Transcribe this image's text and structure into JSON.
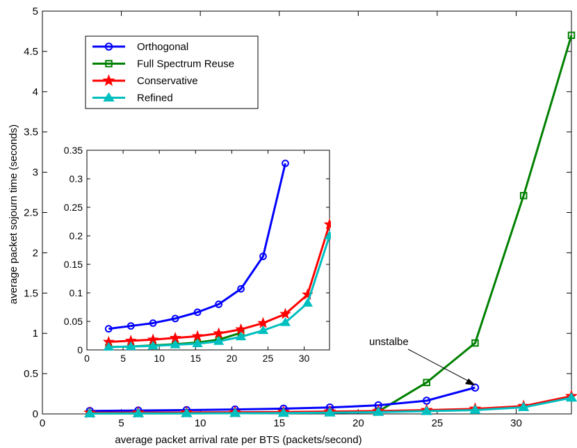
{
  "chart_data": [
    {
      "type": "line",
      "xlabel": "average packet arrival rate per BTS (packets/second)",
      "ylabel": "average packet sojourn time (seconds)",
      "xlim": [
        0,
        33.5
      ],
      "ylim": [
        0,
        5
      ],
      "xticks": [
        0,
        5,
        10,
        15,
        20,
        25,
        30
      ],
      "yticks": [
        0,
        0.5,
        1,
        1.5,
        2,
        2.5,
        3,
        3.5,
        4,
        4.5,
        5
      ],
      "grid": false,
      "legend_position": "top-left",
      "x": [
        3,
        6.07,
        9.13,
        12.2,
        15.27,
        18.2,
        21.27,
        24.33,
        27.4,
        30.47,
        33.5
      ],
      "series": [
        {
          "name": "Orthogonal",
          "color": "#0000ff",
          "marker": "circle",
          "x": [
            3,
            6.07,
            9.13,
            12.2,
            15.27,
            18.2,
            21.27,
            24.33,
            27.4
          ],
          "values": [
            0.037,
            0.042,
            0.047,
            0.055,
            0.066,
            0.08,
            0.107,
            0.164,
            0.327
          ]
        },
        {
          "name": "Full Spectrum Reuse",
          "color": "#008000",
          "marker": "square",
          "x": [
            3,
            6.07,
            9.13,
            12.2,
            15.27,
            18.2,
            21.27,
            24.33,
            27.4,
            30.47,
            33.5
          ],
          "values": [
            0.005,
            0.006,
            0.008,
            0.01,
            0.013,
            0.018,
            0.03,
            0.39,
            0.88,
            2.71,
            4.7
          ]
        },
        {
          "name": "Conservative",
          "color": "#ff0000",
          "marker": "star",
          "x": [
            3,
            6.07,
            9.13,
            12.2,
            15.27,
            18.2,
            21.27,
            24.33,
            27.4,
            30.47,
            33.5
          ],
          "values": [
            0.014,
            0.016,
            0.018,
            0.021,
            0.024,
            0.029,
            0.036,
            0.047,
            0.063,
            0.097,
            0.22
          ]
        },
        {
          "name": "Refined",
          "color": "#00bfbf",
          "marker": "triangle",
          "x": [
            3,
            6.07,
            9.13,
            12.2,
            15.27,
            18.2,
            21.27,
            24.33,
            27.4,
            30.47,
            33.5
          ],
          "values": [
            0.005,
            0.006,
            0.007,
            0.009,
            0.011,
            0.015,
            0.023,
            0.034,
            0.048,
            0.082,
            0.2
          ]
        }
      ],
      "annotation": {
        "text": "unstalbe",
        "points_to": {
          "x": 27.4,
          "y": 0.327
        }
      }
    },
    {
      "type": "line",
      "inset": true,
      "xlim": [
        0,
        33.5
      ],
      "ylim": [
        0,
        0.35
      ],
      "xticks": [
        0,
        5,
        10,
        15,
        20,
        25,
        30
      ],
      "yticks": [
        0,
        0.05,
        0.1,
        0.15,
        0.2,
        0.25,
        0.3,
        0.35
      ],
      "series": [
        {
          "name": "Orthogonal",
          "color": "#0000ff",
          "marker": "circle",
          "x": [
            3,
            6.07,
            9.13,
            12.2,
            15.27,
            18.2,
            21.27,
            24.33,
            27.4
          ],
          "values": [
            0.037,
            0.042,
            0.047,
            0.055,
            0.066,
            0.08,
            0.107,
            0.164,
            0.327
          ]
        },
        {
          "name": "Full Spectrum Reuse",
          "color": "#008000",
          "marker": "square",
          "x": [
            3,
            6.07,
            9.13,
            12.2,
            15.27,
            18.2,
            21.27
          ],
          "values": [
            0.005,
            0.006,
            0.008,
            0.01,
            0.013,
            0.018,
            0.03
          ]
        },
        {
          "name": "Conservative",
          "color": "#ff0000",
          "marker": "star",
          "x": [
            3,
            6.07,
            9.13,
            12.2,
            15.27,
            18.2,
            21.27,
            24.33,
            27.4,
            30.47,
            33.5
          ],
          "values": [
            0.014,
            0.016,
            0.018,
            0.021,
            0.024,
            0.029,
            0.036,
            0.047,
            0.063,
            0.097,
            0.22
          ]
        },
        {
          "name": "Refined",
          "color": "#00bfbf",
          "marker": "triangle",
          "x": [
            3,
            6.07,
            9.13,
            12.2,
            15.27,
            18.2,
            21.27,
            24.33,
            27.4,
            30.47,
            33.5
          ],
          "values": [
            0.005,
            0.006,
            0.007,
            0.009,
            0.011,
            0.015,
            0.023,
            0.034,
            0.048,
            0.082,
            0.2
          ]
        }
      ]
    }
  ]
}
